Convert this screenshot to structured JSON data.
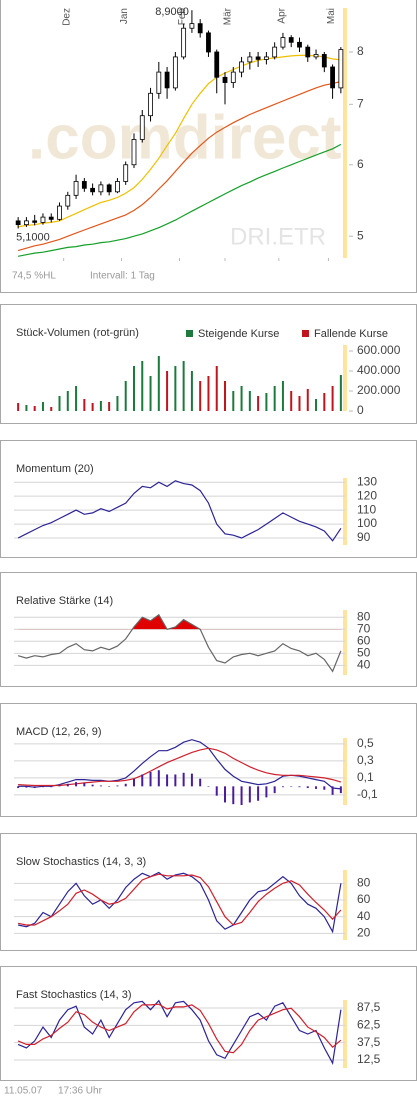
{
  "chart_data": [
    {
      "type": "candlestick",
      "xlim": [
        0,
        40
      ],
      "xticks": [
        {
          "value": 6,
          "label": "Dez"
        },
        {
          "value": 13,
          "label": "Jan"
        },
        {
          "value": 20,
          "label": "Feb"
        },
        {
          "value": 25.5,
          "label": "Mär"
        },
        {
          "value": 32,
          "label": "Apr"
        },
        {
          "value": 38,
          "label": "Mai"
        }
      ],
      "ylim": [
        4.73,
        8.95
      ],
      "log": true,
      "yticks": [
        5,
        6,
        7,
        8
      ],
      "open": [
        5.2,
        5.15,
        5.2,
        5.18,
        5.25,
        5.22,
        5.4,
        5.55,
        5.75,
        5.65,
        5.6,
        5.7,
        5.6,
        5.75,
        6.0,
        6.4,
        6.8,
        7.2,
        7.6,
        7.3,
        7.9,
        8.5,
        8.6,
        8.4,
        8.0,
        7.5,
        7.4,
        7.6,
        7.8,
        7.9,
        7.85,
        7.9,
        8.1,
        8.3,
        8.2,
        8.1,
        7.9,
        7.95,
        7.7,
        7.3
      ],
      "high": [
        5.25,
        5.25,
        5.28,
        5.3,
        5.3,
        5.45,
        5.6,
        5.85,
        5.8,
        5.72,
        5.75,
        5.72,
        5.8,
        6.05,
        6.5,
        6.9,
        7.3,
        7.8,
        7.7,
        8.0,
        8.6,
        8.9,
        8.7,
        8.45,
        8.05,
        7.6,
        7.7,
        7.9,
        8.0,
        8.0,
        8.0,
        8.2,
        8.4,
        8.35,
        8.3,
        8.15,
        8.05,
        8.0,
        7.75,
        8.1
      ],
      "low": [
        5.1,
        5.12,
        5.14,
        5.15,
        5.18,
        5.2,
        5.35,
        5.5,
        5.6,
        5.55,
        5.55,
        5.55,
        5.58,
        5.7,
        5.95,
        6.35,
        6.7,
        7.1,
        7.1,
        7.25,
        7.85,
        8.4,
        8.3,
        7.9,
        7.2,
        7.0,
        7.3,
        7.5,
        7.65,
        7.7,
        7.75,
        7.85,
        8.05,
        8.1,
        8.0,
        7.8,
        7.85,
        7.6,
        7.1,
        7.2
      ],
      "close": [
        5.15,
        5.2,
        5.18,
        5.25,
        5.22,
        5.4,
        5.55,
        5.75,
        5.65,
        5.6,
        5.7,
        5.6,
        5.75,
        6.0,
        6.4,
        6.8,
        7.2,
        7.6,
        7.3,
        7.9,
        8.5,
        8.6,
        8.4,
        8.0,
        7.5,
        7.4,
        7.6,
        7.8,
        7.9,
        7.85,
        7.9,
        8.1,
        8.3,
        8.2,
        8.1,
        7.9,
        7.95,
        7.7,
        7.3,
        8.05
      ],
      "series": [
        {
          "color": "#f0c000",
          "values": [
            5.12,
            5.14,
            5.15,
            5.17,
            5.18,
            5.2,
            5.25,
            5.3,
            5.35,
            5.4,
            5.45,
            5.48,
            5.52,
            5.58,
            5.66,
            5.78,
            5.93,
            6.1,
            6.3,
            6.5,
            6.75,
            7.0,
            7.2,
            7.38,
            7.5,
            7.58,
            7.65,
            7.72,
            7.78,
            7.83,
            7.86,
            7.88,
            7.9,
            7.92,
            7.93,
            7.93,
            7.92,
            7.9,
            7.86,
            7.84
          ]
        },
        {
          "color": "#e2561a",
          "values": [
            4.82,
            4.85,
            4.88,
            4.9,
            4.93,
            4.96,
            5.0,
            5.04,
            5.08,
            5.12,
            5.16,
            5.2,
            5.24,
            5.28,
            5.34,
            5.42,
            5.52,
            5.64,
            5.76,
            5.9,
            6.04,
            6.18,
            6.3,
            6.42,
            6.52,
            6.6,
            6.68,
            6.75,
            6.82,
            6.88,
            6.94,
            7.0,
            7.06,
            7.12,
            7.18,
            7.24,
            7.3,
            7.35,
            7.38,
            7.42
          ]
        },
        {
          "color": "#14a028",
          "values": [
            4.75,
            4.77,
            4.79,
            4.8,
            4.82,
            4.84,
            4.86,
            4.87,
            4.89,
            4.9,
            4.92,
            4.93,
            4.95,
            4.97,
            5.0,
            5.03,
            5.07,
            5.11,
            5.16,
            5.21,
            5.27,
            5.33,
            5.39,
            5.45,
            5.51,
            5.57,
            5.63,
            5.69,
            5.74,
            5.8,
            5.85,
            5.9,
            5.95,
            6.0,
            6.05,
            6.1,
            6.15,
            6.2,
            6.25,
            6.32
          ]
        }
      ],
      "max_label": {
        "value": 8.9,
        "label": "8,9000"
      },
      "min_label": {
        "value": 5.1,
        "label": "5,1000"
      },
      "watermark": ".comdirect",
      "symbol": "DRI.ETR",
      "notes": [
        "74,5 %HL",
        "Intervall: 1 Tag"
      ],
      "highlight_color": "#ffe4a0"
    },
    {
      "type": "bar",
      "title": "Stück-Volumen (rot-grün)",
      "legend": true,
      "ylim": [
        0,
        660000
      ],
      "yticks": [
        0,
        {
          "value": 200000,
          "label": "200.000"
        },
        {
          "value": 400000,
          "label": "400.000"
        },
        {
          "value": 600000,
          "label": "600.000"
        }
      ],
      "series": [
        {
          "name": "Steigende Kurse",
          "color": "#1b7a3c",
          "values": [
            null,
            60000,
            null,
            90000,
            null,
            150000,
            200000,
            250000,
            null,
            null,
            100000,
            null,
            150000,
            300000,
            450000,
            500000,
            350000,
            550000,
            null,
            450000,
            500000,
            400000,
            null,
            null,
            null,
            null,
            200000,
            250000,
            200000,
            null,
            180000,
            250000,
            300000,
            null,
            null,
            null,
            120000,
            null,
            null,
            360000
          ]
        },
        {
          "name": "Fallende Kurse",
          "color": "#c0141e",
          "values": [
            80000,
            null,
            50000,
            null,
            40000,
            null,
            null,
            null,
            120000,
            80000,
            null,
            90000,
            null,
            null,
            null,
            null,
            null,
            null,
            400000,
            null,
            null,
            null,
            300000,
            350000,
            450000,
            300000,
            null,
            null,
            null,
            150000,
            null,
            null,
            null,
            200000,
            150000,
            220000,
            null,
            180000,
            250000,
            null
          ]
        }
      ],
      "highlight_color": "#ffe4a0"
    },
    {
      "type": "line",
      "title": "Momentum (20)",
      "grid": true,
      "ylim": [
        85,
        133
      ],
      "yticks": [
        90,
        100,
        110,
        120,
        130
      ],
      "series": [
        {
          "color": "#2c2496",
          "values": [
            90,
            93,
            96,
            99,
            101,
            104,
            107,
            110,
            107,
            108,
            111,
            109,
            112,
            115,
            122,
            127,
            126,
            130,
            127,
            131,
            129,
            128,
            124,
            115,
            100,
            93,
            92,
            90,
            93,
            96,
            100,
            104,
            108,
            105,
            102,
            100,
            98,
            95,
            88,
            97
          ]
        }
      ],
      "highlight_color": "#ffe4a0"
    },
    {
      "type": "line",
      "title": "Relative Stärke (14)",
      "grid": true,
      "ylim": [
        32,
        86
      ],
      "yticks": [
        40,
        50,
        60,
        70,
        80
      ],
      "fill_above": 70,
      "fill_color": "#e00000",
      "series": [
        {
          "color": "#666666",
          "values": [
            48,
            46,
            48,
            47,
            49,
            50,
            55,
            58,
            53,
            52,
            55,
            53,
            56,
            62,
            72,
            80,
            77,
            82,
            70,
            72,
            78,
            74,
            70,
            55,
            44,
            42,
            47,
            49,
            50,
            48,
            50,
            52,
            58,
            54,
            52,
            48,
            50,
            45,
            35,
            52
          ]
        }
      ],
      "highlight_color": "#ffe4a0"
    },
    {
      "type": "line",
      "title": "MACD (12, 26, 9)",
      "grid": true,
      "ylim": [
        -0.22,
        0.57
      ],
      "yticks": [
        {
          "value": -0.1,
          "label": "-0,1"
        },
        {
          "value": 0.1,
          "label": "0,1"
        },
        {
          "value": 0.3,
          "label": "0,3"
        },
        {
          "value": 0.5,
          "label": "0,5"
        }
      ],
      "series": [
        {
          "color": "#2c2496",
          "values": [
            0.0,
            0.0,
            -0.01,
            0.0,
            0.0,
            0.02,
            0.05,
            0.08,
            0.08,
            0.07,
            0.07,
            0.06,
            0.07,
            0.1,
            0.18,
            0.27,
            0.35,
            0.42,
            0.42,
            0.46,
            0.52,
            0.55,
            0.52,
            0.45,
            0.32,
            0.2,
            0.12,
            0.06,
            0.04,
            0.02,
            0.03,
            0.06,
            0.12,
            0.13,
            0.12,
            0.1,
            0.08,
            0.06,
            -0.02,
            -0.03
          ]
        },
        {
          "color": "#d0202c",
          "values": [
            0.02,
            0.015,
            0.01,
            0.01,
            0.01,
            0.01,
            0.02,
            0.03,
            0.04,
            0.05,
            0.06,
            0.06,
            0.06,
            0.07,
            0.09,
            0.13,
            0.18,
            0.23,
            0.28,
            0.32,
            0.36,
            0.4,
            0.43,
            0.45,
            0.43,
            0.39,
            0.33,
            0.28,
            0.23,
            0.19,
            0.16,
            0.14,
            0.13,
            0.13,
            0.13,
            0.12,
            0.11,
            0.1,
            0.08,
            0.05
          ]
        },
        {
          "type": "bar",
          "color": "#4a1c9c",
          "values": [
            -0.02,
            -0.015,
            -0.02,
            -0.01,
            -0.01,
            0.01,
            0.03,
            0.05,
            0.04,
            0.02,
            0.01,
            0,
            0.01,
            0.03,
            0.09,
            0.14,
            0.17,
            0.19,
            0.14,
            0.14,
            0.16,
            0.15,
            0.09,
            0,
            -0.11,
            -0.19,
            -0.21,
            -0.22,
            -0.19,
            -0.17,
            -0.13,
            -0.08,
            -0.01,
            0,
            -0.01,
            -0.02,
            -0.03,
            -0.04,
            -0.1,
            -0.08
          ]
        }
      ],
      "highlight_color": "#ffe4a0"
    },
    {
      "type": "line",
      "title": "Slow Stochastics (14, 3, 3)",
      "grid": true,
      "ylim": [
        12,
        96
      ],
      "yticks": [
        20,
        40,
        60,
        80
      ],
      "series": [
        {
          "color": "#2c2496",
          "values": [
            30,
            28,
            32,
            45,
            40,
            55,
            70,
            80,
            65,
            55,
            60,
            50,
            60,
            75,
            85,
            92,
            88,
            93,
            85,
            90,
            92,
            88,
            80,
            60,
            35,
            25,
            30,
            45,
            60,
            70,
            72,
            80,
            88,
            80,
            65,
            55,
            50,
            40,
            22,
            80
          ]
        },
        {
          "color": "#d0202c",
          "values": [
            32,
            30,
            30,
            35,
            40,
            47,
            55,
            68,
            72,
            67,
            60,
            55,
            57,
            62,
            73,
            84,
            88,
            91,
            89,
            89,
            89,
            90,
            87,
            76,
            58,
            40,
            30,
            33,
            45,
            58,
            67,
            74,
            80,
            83,
            78,
            67,
            57,
            48,
            37,
            48
          ]
        }
      ],
      "highlight_color": "#ffe4a0"
    },
    {
      "type": "line",
      "title": "Fast Stochastics (14, 3)",
      "grid": true,
      "ylim": [
        1,
        99
      ],
      "yticks": [
        {
          "value": 12.5,
          "label": "12,5"
        },
        {
          "value": 37.5,
          "label": "37,5"
        },
        {
          "value": 62.5,
          "label": "62,5"
        },
        {
          "value": 87.5,
          "label": "87,5"
        }
      ],
      "series": [
        {
          "color": "#2c2496",
          "values": [
            35,
            30,
            40,
            60,
            45,
            70,
            85,
            90,
            60,
            50,
            70,
            45,
            65,
            85,
            95,
            97,
            85,
            98,
            75,
            95,
            97,
            85,
            70,
            40,
            20,
            15,
            35,
            55,
            75,
            80,
            70,
            90,
            95,
            75,
            55,
            50,
            55,
            30,
            8,
            85
          ]
        },
        {
          "color": "#d0202c",
          "values": [
            40,
            35,
            35,
            43,
            48,
            58,
            67,
            82,
            78,
            67,
            60,
            55,
            60,
            65,
            82,
            92,
            92,
            93,
            86,
            89,
            89,
            92,
            84,
            65,
            43,
            25,
            23,
            35,
            55,
            70,
            75,
            80,
            85,
            87,
            75,
            60,
            53,
            45,
            31,
            41
          ]
        }
      ],
      "highlight_color": "#ffe4a0"
    }
  ],
  "footer": {
    "date": "11.05.07",
    "time": "17:36 Uhr"
  }
}
